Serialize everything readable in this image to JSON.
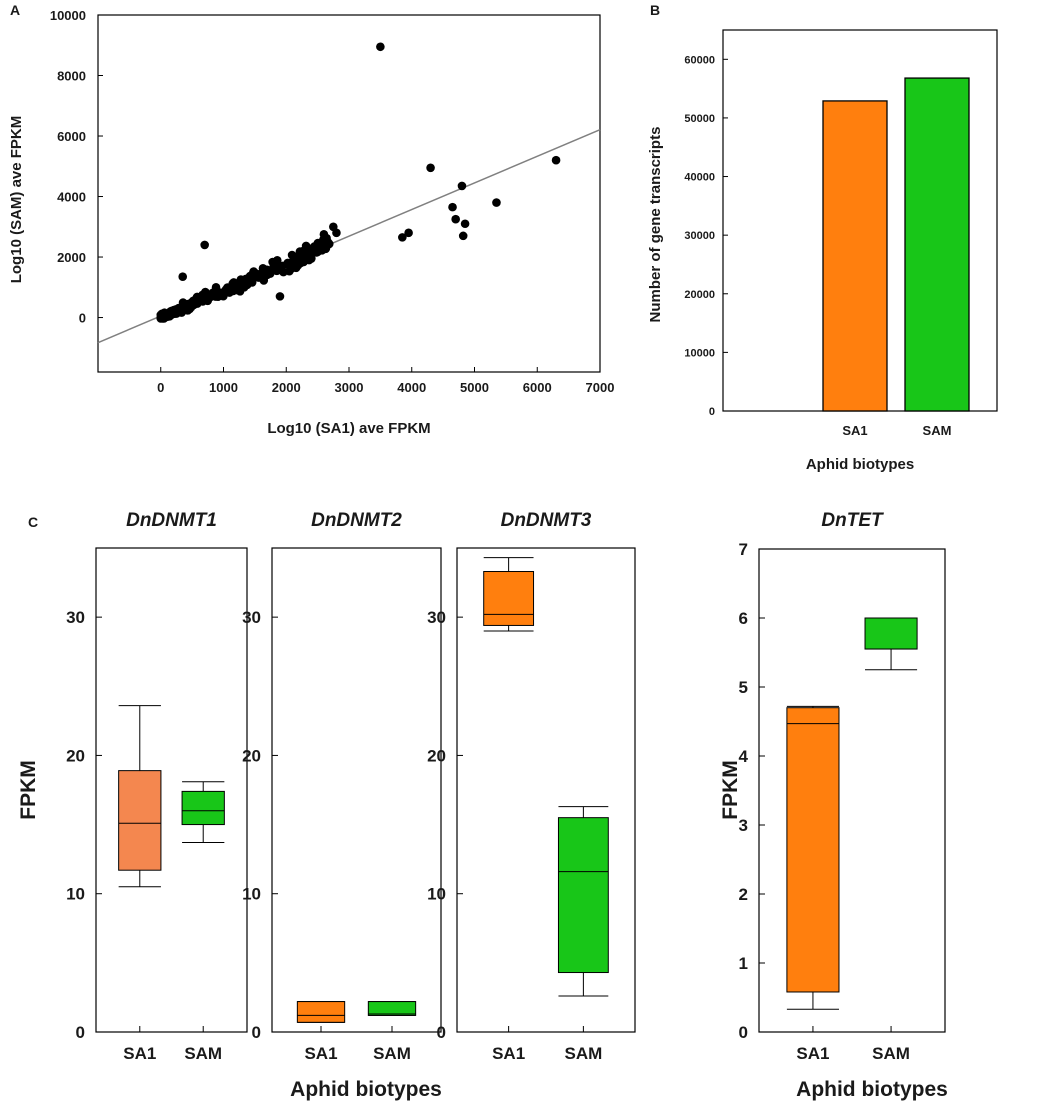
{
  "colors": {
    "orange": "#ff7f0e",
    "orange_light": "#f4874f",
    "green": "#18c618",
    "ink": "#000000",
    "regression": "#808080"
  },
  "panels": {
    "a": "A",
    "b": "B",
    "c": "C"
  },
  "chart_data": [
    {
      "id": "A",
      "type": "scatter",
      "xlabel": "Log10 (SA1) ave FPKM",
      "ylabel": "Log10 (SAM) ave FPKM",
      "xlim": [
        -1000,
        7000
      ],
      "ylim": [
        -1800,
        10000
      ],
      "xticks": [
        0,
        1000,
        2000,
        3000,
        4000,
        5000,
        6000,
        7000
      ],
      "yticks": [
        0,
        2000,
        4000,
        6000,
        8000,
        10000
      ],
      "regression": {
        "slope": 0.88,
        "intercept": 50
      },
      "outliers": [
        [
          3500,
          8950
        ],
        [
          4300,
          4950
        ],
        [
          4800,
          4350
        ],
        [
          6300,
          5200
        ],
        [
          5350,
          3800
        ],
        [
          4650,
          3650
        ],
        [
          4700,
          3250
        ],
        [
          4850,
          3100
        ],
        [
          4820,
          2700
        ],
        [
          3950,
          2800
        ],
        [
          3850,
          2650
        ],
        [
          700,
          2400
        ],
        [
          2750,
          3000
        ],
        [
          2800,
          2800
        ],
        [
          2600,
          2750
        ],
        [
          2450,
          2350
        ],
        [
          2200,
          2050
        ],
        [
          2400,
          1950
        ],
        [
          1900,
          700
        ],
        [
          350,
          1350
        ]
      ],
      "cluster": {
        "n_points": 230,
        "x_range": [
          0,
          2700
        ],
        "slope": 0.9,
        "spread": 260
      }
    },
    {
      "id": "B",
      "type": "bar",
      "categories": [
        "SA1",
        "SAM"
      ],
      "values": [
        52900,
        56800
      ],
      "ylabel": "Number of gene transcripts",
      "xlabel": "Aphid biotypes",
      "ylim": [
        0,
        65000
      ],
      "yticks": [
        0,
        10000,
        20000,
        30000,
        40000,
        50000,
        60000
      ]
    },
    {
      "id": "C1",
      "type": "box",
      "title": "DnDNMT1",
      "ylabel": "FPKM",
      "ylim": [
        0,
        35
      ],
      "yticks": [
        0,
        10,
        20,
        30
      ],
      "categories": [
        "SA1",
        "SAM"
      ],
      "boxes": [
        {
          "min": 10.5,
          "q1": 11.7,
          "median": 15.1,
          "q3": 18.9,
          "max": 23.6
        },
        {
          "min": 13.7,
          "q1": 15.0,
          "median": 16.0,
          "q3": 17.4,
          "max": 18.1
        }
      ]
    },
    {
      "id": "C2",
      "type": "box",
      "title": "DnDNMT2",
      "ylim": [
        0,
        35
      ],
      "yticks": [
        0,
        10,
        20,
        30
      ],
      "categories": [
        "SA1",
        "SAM"
      ],
      "boxes": [
        {
          "min": 0.7,
          "q1": 0.7,
          "median": 1.2,
          "q3": 2.2,
          "max": 2.2
        },
        {
          "min": 1.2,
          "q1": 1.2,
          "median": 1.3,
          "q3": 2.2,
          "max": 2.2
        }
      ]
    },
    {
      "id": "C3",
      "type": "box",
      "title": "DnDNMT3",
      "ylim": [
        0,
        35
      ],
      "yticks": [
        0,
        10,
        20,
        30
      ],
      "categories": [
        "SA1",
        "SAM"
      ],
      "boxes": [
        {
          "min": 29.0,
          "q1": 29.4,
          "median": 30.2,
          "q3": 33.3,
          "max": 34.3
        },
        {
          "min": 2.6,
          "q1": 4.3,
          "median": 11.6,
          "q3": 15.5,
          "max": 16.3
        }
      ]
    },
    {
      "id": "C4",
      "type": "box",
      "title": "DnTET",
      "ylabel": "FPKM",
      "ylim": [
        0,
        7
      ],
      "yticks": [
        0,
        1,
        2,
        3,
        4,
        5,
        6,
        7
      ],
      "categories": [
        "SA1",
        "SAM"
      ],
      "boxes": [
        {
          "min": 0.33,
          "q1": 0.58,
          "median": 4.47,
          "q3": 4.7,
          "max": 4.72
        },
        {
          "min": 5.25,
          "q1": 5.55,
          "median": 5.55,
          "q3": 6.0,
          "max": 6.0
        }
      ]
    }
  ],
  "shared": {
    "xlabel": "Aphid biotypes"
  }
}
